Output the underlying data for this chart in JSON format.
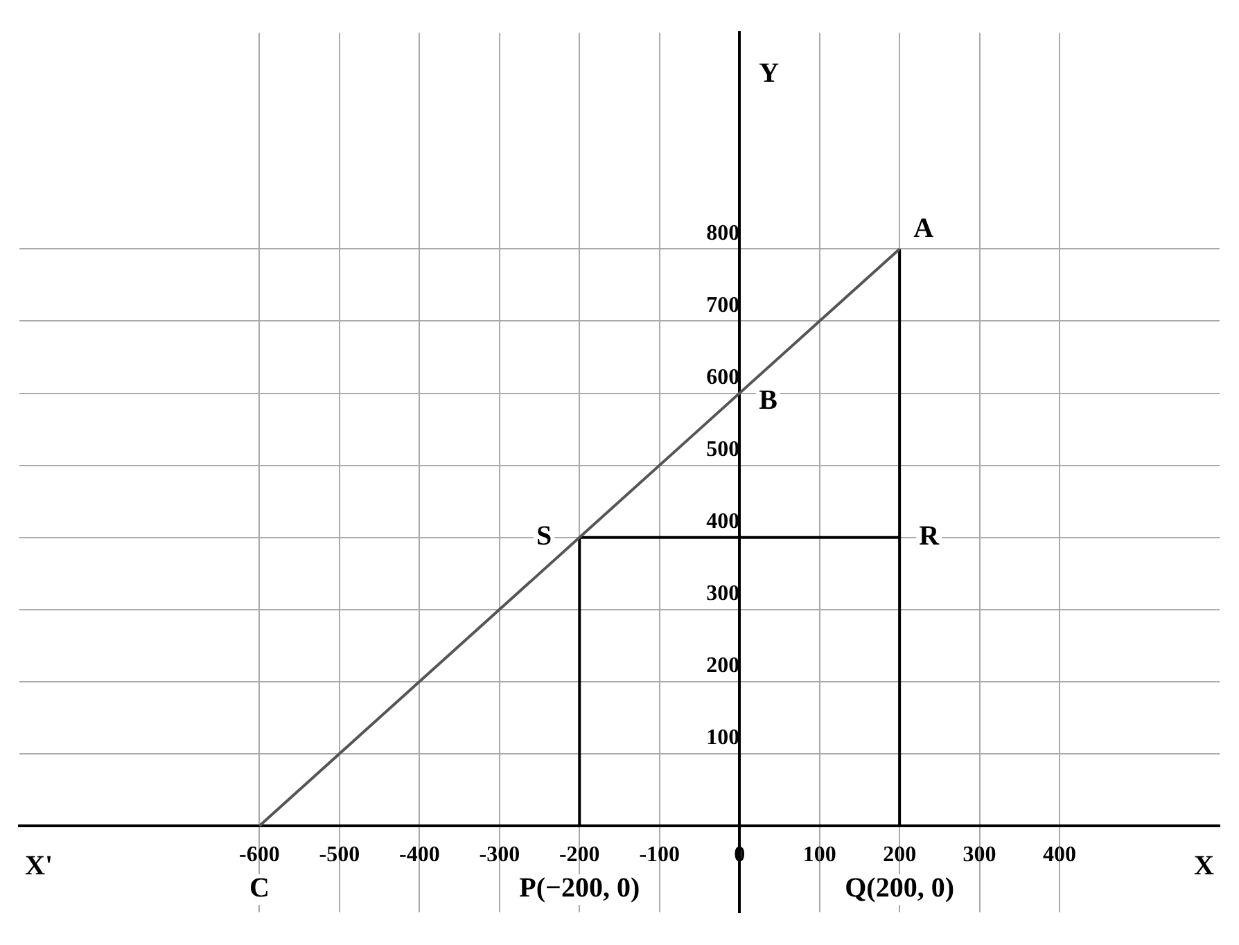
{
  "chart_data": {
    "type": "line",
    "xlim": [
      -900,
      600
    ],
    "ylim": [
      -120,
      1100
    ],
    "xticks": [
      -600,
      -500,
      -400,
      -300,
      -200,
      -100,
      0,
      100,
      200,
      300,
      400
    ],
    "yticks": [
      100,
      200,
      300,
      400,
      500,
      600,
      700,
      800
    ],
    "grid": true,
    "marker": "none",
    "series": [
      {
        "color": "#555555",
        "x": [
          -600,
          200
        ],
        "values": [
          0,
          800
        ]
      },
      {
        "color": "#000000",
        "x": [
          -200,
          -200
        ],
        "values": [
          0,
          400
        ]
      },
      {
        "color": "#000000",
        "x": [
          -200,
          200
        ],
        "values": [
          400,
          400
        ]
      },
      {
        "color": "#000000",
        "x": [
          200,
          200
        ],
        "values": [
          0,
          800
        ]
      }
    ],
    "annotations": [
      {
        "text": "A",
        "x": 200,
        "y": 800
      },
      {
        "text": "B",
        "x": 0,
        "y": 600
      },
      {
        "text": "C",
        "x": -600,
        "y": 0
      },
      {
        "text": "S",
        "x": -200,
        "y": 400
      },
      {
        "text": "R",
        "x": 200,
        "y": 400
      },
      {
        "text": "P(−200, 0)",
        "x": -200,
        "y": 0
      },
      {
        "text": "Q(200, 0)",
        "x": 200,
        "y": 0
      },
      "X'"
    ],
    "xlabel": "X",
    "ylabel": "Y"
  }
}
